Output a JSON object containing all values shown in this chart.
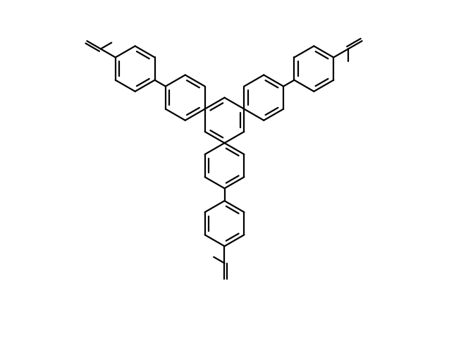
{
  "bg_color": "#ffffff",
  "line_color": "#000000",
  "line_width": 1.6,
  "fig_width": 6.37,
  "fig_height": 5.11,
  "dpi": 100,
  "R": 0.95,
  "xlim": [
    -7.5,
    7.5
  ],
  "ylim": [
    -9.5,
    5.5
  ]
}
